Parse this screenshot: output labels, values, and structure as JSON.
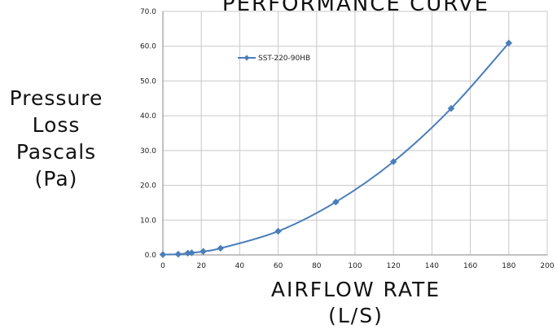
{
  "chart_data": {
    "type": "line",
    "title": "PERFORMANCE CURVE",
    "ylabel_lines": [
      "Pressure",
      "Loss",
      "Pascals",
      "(Pa)"
    ],
    "xlabel_lines": [
      "AIRFLOW RATE",
      "(L/S)"
    ],
    "xlim": [
      0,
      200
    ],
    "ylim": [
      0,
      70
    ],
    "x_ticks": [
      0,
      20,
      40,
      60,
      80,
      100,
      120,
      140,
      160,
      180,
      200
    ],
    "y_ticks": [
      "0.0",
      "10.0",
      "20.0",
      "30.0",
      "40.0",
      "50.0",
      "60.0",
      "70.0"
    ],
    "grid": true,
    "legend_position": "top-left",
    "series": [
      {
        "name": "SST-220-90HB",
        "color": "#4a7ebb",
        "marker": "diamond",
        "x": [
          0,
          8,
          13,
          15,
          21,
          30,
          60,
          90,
          120,
          150,
          180
        ],
        "y": [
          0.1,
          0.2,
          0.5,
          0.6,
          1.0,
          1.9,
          6.8,
          15.2,
          26.8,
          42.1,
          60.9
        ]
      }
    ]
  }
}
